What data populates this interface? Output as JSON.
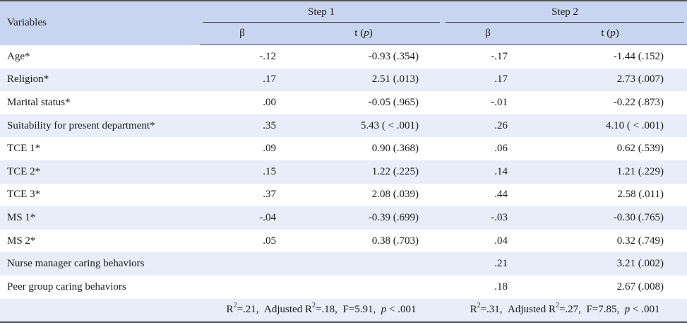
{
  "header": {
    "variables_label": "Variables",
    "step1_label": "Step 1",
    "step2_label": "Step 2",
    "beta_label": "β",
    "t_label_prefix": "t (",
    "t_label_p": "p",
    "t_label_suffix": ")"
  },
  "rows": [
    {
      "name": "Age*",
      "b1": "-.12",
      "t1": "-0.93 (.354)",
      "b2": "-.17",
      "t2": "-1.44 (.152)"
    },
    {
      "name": "Religion*",
      "b1": ".17",
      "t1": "2.51 (.013)",
      "b2": ".17",
      "t2": "2.73 (.007)"
    },
    {
      "name": "Marital status*",
      "b1": ".00",
      "t1": "-0.05 (.965)",
      "b2": "-.01",
      "t2": "-0.22 (.873)"
    },
    {
      "name": "Suitability for present department*",
      "b1": ".35",
      "t1": "5.43 ( < .001)",
      "b2": ".26",
      "t2": "4.10 ( < .001)"
    },
    {
      "name": "TCE 1*",
      "b1": ".09",
      "t1": "0.90 (.368)",
      "b2": ".06",
      "t2": "0.62 (.539)"
    },
    {
      "name": "TCE 2*",
      "b1": ".15",
      "t1": "1.22 (.225)",
      "b2": ".14",
      "t2": "1.21 (.229)"
    },
    {
      "name": "TCE 3*",
      "b1": ".37",
      "t1": "2.08 (.039)",
      "b2": ".44",
      "t2": "2.58 (.011)"
    },
    {
      "name": "MS 1*",
      "b1": "-.04",
      "t1": "-0.39 (.699)",
      "b2": "-.03",
      "t2": "-0.30 (.765)"
    },
    {
      "name": "MS 2*",
      "b1": ".05",
      "t1": "0.38 (.703)",
      "b2": ".04",
      "t2": "0.32 (.749)"
    },
    {
      "name": "Nurse manager caring behaviors",
      "b1": "",
      "t1": "",
      "b2": ".21",
      "t2": "3.21 (.002)"
    },
    {
      "name": "Peer group caring behaviors",
      "b1": "",
      "t1": "",
      "b2": ".18",
      "t2": "2.67 (.008)"
    }
  ],
  "summary": {
    "step1": {
      "r2_label": "R",
      "r2_sup": "2",
      "r2_value": "=.21,",
      "adj_label": "Adjusted R",
      "adj_sup": "2",
      "adj_value": "=.18,",
      "f_text": "F=5.91,",
      "p_label": "p",
      "p_value": "< .001"
    },
    "step2": {
      "r2_label": "R",
      "r2_sup": "2",
      "r2_value": "=.31,",
      "adj_label": "Adjusted R",
      "adj_sup": "2",
      "adj_value": "=.27,",
      "f_text": "F=7.85,",
      "p_label": "p",
      "p_value": "< .001"
    }
  }
}
